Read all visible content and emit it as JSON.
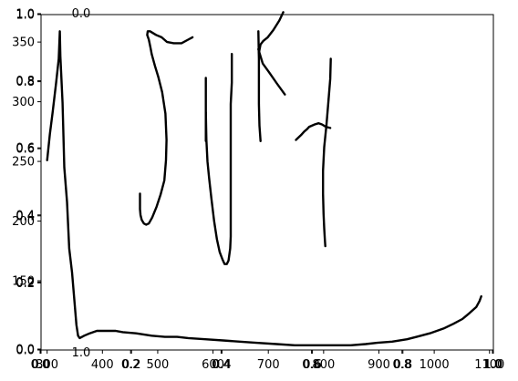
{
  "chart_data": {
    "type": "line",
    "title": "",
    "xlabel": "",
    "ylabel": "",
    "grid": false,
    "legend": false,
    "colors": {
      "ink": "#000000",
      "axes": "#000000",
      "background": "#ffffff"
    },
    "axes_sets": [
      {
        "id": "unit-a",
        "xlim": [
          0,
          1
        ],
        "ylim": [
          0,
          1
        ],
        "x_ticks": [
          "0.0",
          "0.2",
          "0.4",
          "0.6",
          "0.8",
          "1.0"
        ],
        "y_ticks": [
          "0.0",
          "0.2",
          "0.4",
          "0.6",
          "0.8",
          "1.0"
        ]
      },
      {
        "id": "unit-b",
        "xlim": [
          0,
          1
        ],
        "ylim": [
          0,
          1
        ],
        "x_ticks": [
          "0.0",
          "0.2",
          "0.4",
          "0.6",
          "0.8",
          "1.0"
        ],
        "y_ticks": [
          "0.0",
          "0.2",
          "0.4",
          "0.6",
          "0.8",
          "1.0"
        ]
      },
      {
        "id": "data",
        "xlim": [
          289,
          1107
        ],
        "ylim": [
          92,
          373
        ],
        "x_ticks": [
          "300",
          "400",
          "500",
          "600",
          "700",
          "800",
          "900",
          "1000",
          "1100"
        ],
        "y_ticks": [
          "150",
          "200",
          "250",
          "300",
          "350"
        ]
      }
    ],
    "series": [
      {
        "points": [
          [
            300,
            251
          ],
          [
            305,
            273
          ],
          [
            310,
            291
          ],
          [
            316,
            315
          ],
          [
            321,
            336
          ],
          [
            323,
            359
          ],
          [
            324,
            338
          ],
          [
            328,
            299
          ],
          [
            331,
            245
          ],
          [
            336,
            216
          ],
          [
            340,
            177
          ],
          [
            345,
            157
          ],
          [
            349,
            135
          ],
          [
            353,
            113
          ],
          [
            356,
            104
          ],
          [
            359,
            102
          ],
          [
            367,
            104
          ],
          [
            377,
            106
          ],
          [
            390,
            108
          ],
          [
            402,
            108
          ],
          [
            424,
            108
          ],
          [
            437,
            107
          ],
          [
            461,
            106
          ],
          [
            489,
            104
          ],
          [
            513,
            103
          ],
          [
            535,
            103
          ],
          [
            555,
            102
          ],
          [
            586,
            101
          ],
          [
            618,
            100
          ],
          [
            648,
            99
          ],
          [
            678,
            98
          ],
          [
            715,
            97
          ],
          [
            748,
            96
          ],
          [
            780,
            96
          ],
          [
            812,
            96
          ],
          [
            849,
            96
          ],
          [
            876,
            97
          ],
          [
            897,
            98
          ],
          [
            924,
            99
          ],
          [
            951,
            101
          ],
          [
            968,
            103
          ],
          [
            992,
            106
          ],
          [
            1017,
            110
          ],
          [
            1035,
            114
          ],
          [
            1051,
            118
          ],
          [
            1064,
            123
          ],
          [
            1076,
            128
          ],
          [
            1082,
            133
          ],
          [
            1085,
            137
          ]
        ]
      },
      {
        "points": [
          [
            468,
            223
          ],
          [
            468,
            210
          ],
          [
            469,
            205
          ],
          [
            471,
            201
          ],
          [
            475,
            198
          ],
          [
            479,
            197
          ],
          [
            484,
            198
          ],
          [
            490,
            203
          ],
          [
            498,
            212
          ],
          [
            505,
            222
          ],
          [
            512,
            234
          ],
          [
            515,
            251
          ],
          [
            516,
            268
          ],
          [
            514,
            290
          ],
          [
            508,
            308
          ],
          [
            501,
            321
          ],
          [
            495,
            330
          ],
          [
            489,
            340
          ],
          [
            487,
            345
          ],
          [
            484,
            352
          ],
          [
            481,
            356
          ],
          [
            482,
            359
          ],
          [
            486,
            359
          ],
          [
            497,
            356
          ],
          [
            507,
            354
          ],
          [
            517,
            350
          ],
          [
            529,
            349
          ],
          [
            543,
            349
          ],
          [
            555,
            352
          ],
          [
            563,
            354
          ]
        ]
      },
      {
        "points": [
          [
            587,
            291
          ],
          [
            588,
            268
          ],
          [
            590,
            250
          ],
          [
            593,
            236
          ],
          [
            597,
            219
          ],
          [
            602,
            200
          ],
          [
            607,
            185
          ],
          [
            612,
            174
          ],
          [
            617,
            168
          ],
          [
            621,
            164
          ],
          [
            625,
            164
          ],
          [
            628,
            167
          ],
          [
            631,
            177
          ],
          [
            632,
            187
          ],
          [
            632,
            236
          ],
          [
            632,
            251
          ],
          [
            632,
            280
          ],
          [
            632,
            298
          ],
          [
            634,
            316
          ],
          [
            634,
            340
          ]
        ]
      },
      {
        "points": [
          [
            587,
            267
          ],
          [
            587,
            297
          ],
          [
            587,
            320
          ]
        ]
      },
      {
        "points": [
          [
            682,
            359
          ],
          [
            683,
            336
          ],
          [
            683,
            298
          ],
          [
            684,
            280
          ],
          [
            686,
            267
          ]
        ]
      },
      {
        "points": [
          [
            682,
            344
          ],
          [
            690,
            332
          ],
          [
            701,
            325
          ],
          [
            716,
            315
          ],
          [
            730,
            306
          ]
        ]
      },
      {
        "points": [
          [
            683,
            341
          ],
          [
            686,
            348
          ],
          [
            691,
            351
          ],
          [
            699,
            354
          ],
          [
            709,
            360
          ],
          [
            720,
            368
          ],
          [
            727,
            375
          ]
        ]
      },
      {
        "points": [
          [
            809,
            302
          ],
          [
            812,
            319
          ],
          [
            813,
            336
          ]
        ]
      },
      {
        "points": [
          [
            809,
            302
          ],
          [
            805,
            280
          ],
          [
            801,
            262
          ],
          [
            799,
            242
          ],
          [
            799,
            223
          ],
          [
            800,
            206
          ],
          [
            801,
            194
          ],
          [
            802,
            186
          ],
          [
            803,
            179
          ]
        ]
      },
      {
        "points": [
          [
            750,
            268
          ],
          [
            759,
            272
          ],
          [
            765,
            275
          ],
          [
            770,
            277
          ],
          [
            774,
            279
          ],
          [
            784,
            281
          ],
          [
            791,
            282
          ],
          [
            797,
            281
          ],
          [
            804,
            279
          ],
          [
            812,
            278
          ]
        ]
      }
    ]
  }
}
